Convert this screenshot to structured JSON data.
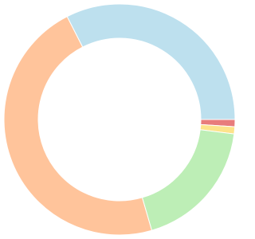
{
  "chart_data": {
    "type": "doughnut",
    "values": [
      32.5,
      1,
      1,
      18.5,
      47
    ],
    "colors": [
      "#bde0ee",
      "#e87c7c",
      "#fde38b",
      "#bdeeb6",
      "#ffc49b"
    ]
  }
}
